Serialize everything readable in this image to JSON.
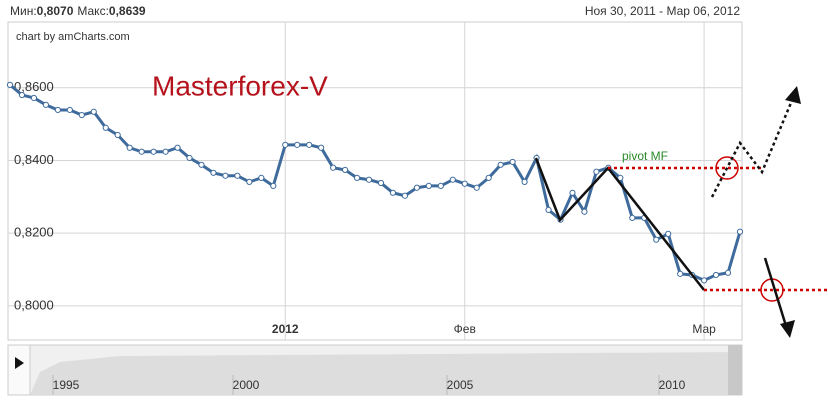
{
  "chart_data": {
    "type": "line",
    "header": {
      "min_label": "Мин:",
      "min": "0,8070",
      "max_label": "Макс:",
      "max": "0,8639",
      "range": "Ноя 30, 2011 - Мар 06, 2012"
    },
    "credit": "chart by amCharts.com",
    "title": "Masterforex-V",
    "annotation": "pivot MF",
    "categories": [
      null,
      null,
      null,
      null,
      null,
      null,
      null,
      null,
      null,
      null,
      null,
      null,
      null,
      null,
      null,
      null,
      null,
      null,
      null,
      null,
      null,
      null,
      null,
      "2012",
      null,
      null,
      null,
      null,
      null,
      null,
      null,
      null,
      null,
      null,
      null,
      null,
      null,
      null,
      "Фев",
      null,
      null,
      null,
      null,
      null,
      null,
      null,
      null,
      null,
      null,
      null,
      null,
      null,
      null,
      null,
      null,
      null,
      null,
      null,
      "Мар",
      null,
      null,
      null
    ],
    "series": [
      {
        "color": "#3f6b9c",
        "values": [
          0.8608,
          0.858,
          0.8572,
          0.8553,
          0.8539,
          0.8539,
          0.8525,
          0.8534,
          0.849,
          0.847,
          0.8435,
          0.8424,
          0.8424,
          0.8424,
          0.8435,
          0.8407,
          0.8388,
          0.8366,
          0.8358,
          0.8358,
          0.8341,
          0.8352,
          0.833,
          0.8443,
          0.8443,
          0.8443,
          0.8435,
          0.838,
          0.8374,
          0.8352,
          0.8347,
          0.8338,
          0.8311,
          0.8303,
          0.8325,
          0.833,
          0.833,
          0.8347,
          0.8336,
          0.8325,
          0.8352,
          0.8388,
          0.8396,
          0.8341,
          0.8407,
          0.8264,
          0.8237,
          0.8311,
          0.8259,
          0.8369,
          0.838,
          0.8352,
          0.8242,
          0.8242,
          0.8182,
          0.8198,
          0.8088,
          0.8085,
          0.807,
          0.8085,
          0.8091,
          0.8204
        ]
      }
    ],
    "ylim": [
      0.7906,
      0.8781
    ],
    "yticks": [
      {
        "value": 0.8,
        "label": "0,8000"
      },
      {
        "value": 0.82,
        "label": "0,8200"
      },
      {
        "value": 0.84,
        "label": "0,8400"
      },
      {
        "value": 0.86,
        "label": "0,8600"
      }
    ],
    "grid": true,
    "navigator": [
      "1995",
      "2000",
      "2005",
      "2010"
    ]
  }
}
